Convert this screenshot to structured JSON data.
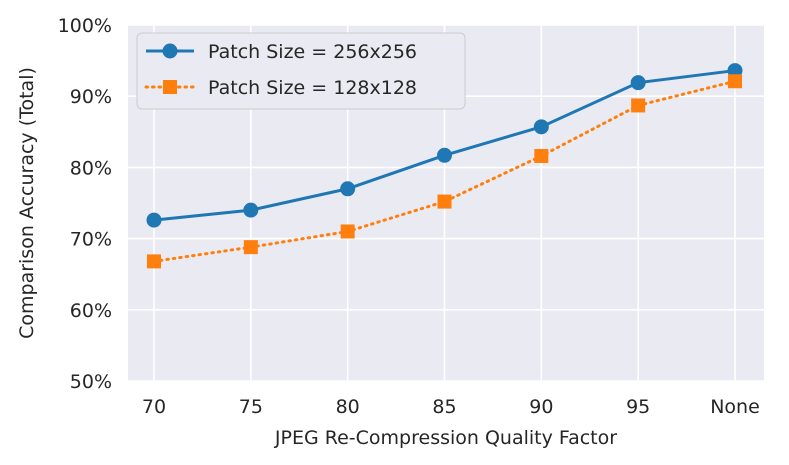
{
  "chart_data": {
    "type": "line",
    "title": "",
    "xlabel": "JPEG Re-Compression Quality Factor",
    "ylabel": "Comparison Accuracy (Total)",
    "categories": [
      "70",
      "75",
      "80",
      "85",
      "90",
      "95",
      "None"
    ],
    "ylim": [
      50,
      100
    ],
    "yticks": [
      50,
      60,
      70,
      80,
      90,
      100
    ],
    "ytick_labels": [
      "50%",
      "60%",
      "70%",
      "80%",
      "90%",
      "100%"
    ],
    "grid": true,
    "legend_position": "top-left",
    "series": [
      {
        "name": "Patch Size = 256x256",
        "color": "#1f77b4",
        "marker": "circle",
        "line_style": "solid",
        "values": [
          72.6,
          74.0,
          77.0,
          81.7,
          85.7,
          91.9,
          93.6
        ]
      },
      {
        "name": "Patch Size = 128x128",
        "color": "#ff7f0e",
        "marker": "square",
        "line_style": "dotted",
        "values": [
          66.8,
          68.8,
          71.0,
          75.2,
          81.6,
          88.7,
          92.1
        ]
      }
    ]
  }
}
